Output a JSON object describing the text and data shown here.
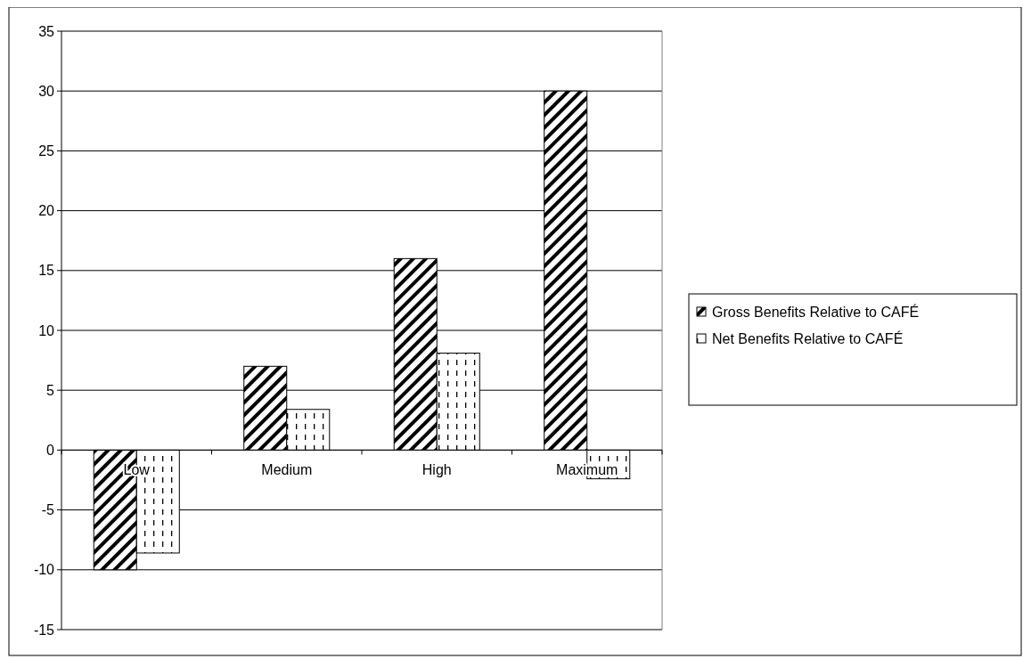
{
  "chart_data": {
    "type": "bar",
    "categories": [
      "Low",
      "Medium",
      "High",
      "Maximum"
    ],
    "series": [
      {
        "name": "Gross Benefits Relative to CAFÉ",
        "color": "#000000",
        "values": [
          -10,
          7,
          16,
          30
        ]
      },
      {
        "name": "Net Benefits Relative to CAFÉ",
        "color": "#000000",
        "values": [
          -8.6,
          3.4,
          8.1,
          -2.4
        ]
      }
    ],
    "ylim": [
      -15,
      35
    ],
    "yticks": [
      -15,
      -10,
      -5,
      0,
      5,
      10,
      15,
      20,
      25,
      30,
      35
    ],
    "grid": "y",
    "legend": "right"
  }
}
